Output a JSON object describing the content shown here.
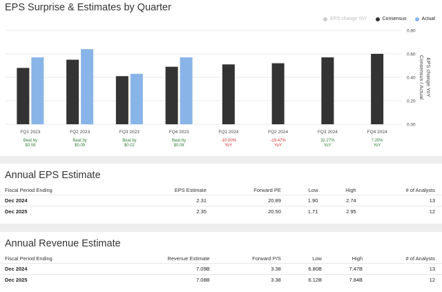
{
  "chart_section": {
    "title": "EPS Surprise & Estimates by Quarter",
    "legend": [
      {
        "label": "EPS change YoY",
        "color": "#cccccc",
        "faded": true
      },
      {
        "label": "Consensus",
        "color": "#333333",
        "faded": false
      },
      {
        "label": "Actual",
        "color": "#89b4e8",
        "faded": false
      }
    ],
    "right_axis_label_1": "EPS change YoY",
    "right_axis_label_2": "Consensus / Actual",
    "surprise_labels": [
      {
        "line1": "Beat by",
        "line2": "$0.09",
        "color": "#2e7d32"
      },
      {
        "line1": "Beat by",
        "line2": "$0.09",
        "color": "#2e7d32"
      },
      {
        "line1": "Beat by",
        "line2": "$0.02",
        "color": "#2e7d32"
      },
      {
        "line1": "Beat by",
        "line2": "$0.08",
        "color": "#2e7d32"
      },
      {
        "line1": "-10.00%",
        "line2": "YoY",
        "color": "#d32f2f"
      },
      {
        "line1": "-19.47%",
        "line2": "YoY",
        "color": "#d32f2f"
      },
      {
        "line1": "32.27%",
        "line2": "YoY",
        "color": "#2e7d32"
      },
      {
        "line1": "7.20%",
        "line2": "YoY",
        "color": "#2e7d32"
      }
    ]
  },
  "chart_data": {
    "type": "bar",
    "categories": [
      "FQ1 2023",
      "FQ2 2023",
      "FQ3 2023",
      "FQ4 2023",
      "FQ1 2024",
      "FQ2 2024",
      "FQ3 2024",
      "FQ4 2024"
    ],
    "series": [
      {
        "name": "Consensus",
        "color": "#333333",
        "values": [
          0.48,
          0.55,
          0.41,
          0.49,
          0.51,
          0.52,
          0.57,
          0.6
        ]
      },
      {
        "name": "Actual",
        "color": "#89b4e8",
        "values": [
          0.57,
          0.64,
          0.43,
          0.57,
          null,
          null,
          null,
          null
        ]
      }
    ],
    "yticks": [
      "0.00",
      "0.20",
      "0.40",
      "0.60",
      "0.80"
    ],
    "ylim": [
      0,
      0.8
    ],
    "grid": true,
    "legend_position": "top-right"
  },
  "eps_estimate": {
    "title": "Annual EPS Estimate",
    "headers": [
      "Fiscal Period Ending",
      "EPS Estimate",
      "Forward PE",
      "Low",
      "High",
      "# of Analysts"
    ],
    "rows": [
      [
        "Dec 2024",
        "2.31",
        "20.89",
        "1.90",
        "2.74",
        "13"
      ],
      [
        "Dec 2025",
        "2.35",
        "20.50",
        "1.71",
        "2.95",
        "12"
      ]
    ]
  },
  "revenue_estimate": {
    "title": "Annual Revenue Estimate",
    "headers": [
      "Fiscal Period Ending",
      "Revenue Estimate",
      "Forward P/S",
      "Low",
      "High",
      "# of Analysts"
    ],
    "rows": [
      [
        "Dec 2024",
        "7.09B",
        "3.38",
        "6.80B",
        "7.47B",
        "13"
      ],
      [
        "Dec 2025",
        "7.08B",
        "3.38",
        "6.12B",
        "7.84B",
        "12"
      ]
    ]
  }
}
